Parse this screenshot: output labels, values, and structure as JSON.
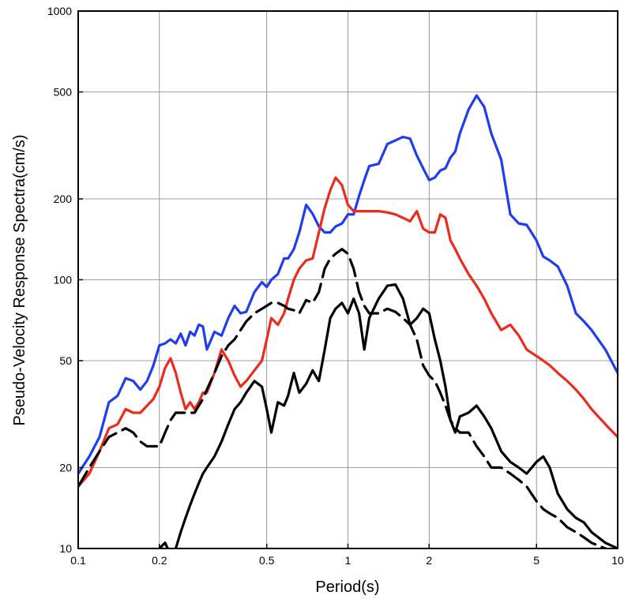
{
  "chart_data": {
    "type": "line",
    "xlabel": "Period(s)",
    "ylabel": "Pseudo-Velocity Response Spectra(cm/s)",
    "xscale": "log",
    "yscale": "log",
    "xlim": [
      0.1,
      10
    ],
    "ylim": [
      10,
      1000
    ],
    "grid": true,
    "x_ticks": [
      0.1,
      0.2,
      0.5,
      1,
      2,
      5,
      10
    ],
    "x_tick_labels": [
      "0.1",
      "0.2",
      "0.5",
      "1",
      "2",
      "5",
      "10"
    ],
    "y_ticks": [
      10,
      20,
      50,
      100,
      200,
      500,
      1000
    ],
    "y_tick_labels": [
      "10",
      "20",
      "50",
      "100",
      "200",
      "500",
      "1000"
    ],
    "series": [
      {
        "color": "#1f3cf0",
        "style": "solid",
        "x": [
          0.1,
          0.11,
          0.12,
          0.13,
          0.14,
          0.15,
          0.16,
          0.17,
          0.18,
          0.19,
          0.2,
          0.21,
          0.22,
          0.23,
          0.24,
          0.25,
          0.26,
          0.27,
          0.28,
          0.29,
          0.3,
          0.32,
          0.34,
          0.36,
          0.38,
          0.4,
          0.42,
          0.45,
          0.48,
          0.5,
          0.52,
          0.55,
          0.58,
          0.6,
          0.63,
          0.66,
          0.7,
          0.74,
          0.78,
          0.82,
          0.86,
          0.9,
          0.95,
          1.0,
          1.05,
          1.1,
          1.15,
          1.2,
          1.3,
          1.4,
          1.5,
          1.6,
          1.7,
          1.8,
          1.9,
          2.0,
          2.1,
          2.2,
          2.3,
          2.4,
          2.5,
          2.6,
          2.8,
          3.0,
          3.2,
          3.4,
          3.7,
          4.0,
          4.3,
          4.6,
          5.0,
          5.3,
          5.6,
          6.0,
          6.5,
          7.0,
          7.5,
          8.0,
          9.0,
          10.0
        ],
        "y": [
          19,
          22,
          26,
          35,
          37,
          43,
          42,
          39,
          42,
          48,
          57,
          58,
          60,
          58,
          63,
          57,
          64,
          62,
          68,
          67,
          55,
          64,
          62,
          72,
          80,
          75,
          76,
          90,
          98,
          94,
          100,
          105,
          120,
          120,
          130,
          150,
          190,
          176,
          158,
          150,
          150,
          158,
          162,
          175,
          175,
          205,
          235,
          265,
          270,
          320,
          330,
          340,
          335,
          290,
          260,
          235,
          240,
          255,
          260,
          285,
          300,
          350,
          430,
          485,
          440,
          350,
          280,
          175,
          162,
          160,
          140,
          122,
          118,
          112,
          95,
          75,
          70,
          65,
          55,
          45
        ]
      },
      {
        "color": "#ee2a1c",
        "style": "solid",
        "x": [
          0.1,
          0.11,
          0.12,
          0.13,
          0.14,
          0.15,
          0.16,
          0.17,
          0.18,
          0.19,
          0.2,
          0.21,
          0.22,
          0.23,
          0.24,
          0.25,
          0.26,
          0.27,
          0.28,
          0.29,
          0.3,
          0.32,
          0.34,
          0.36,
          0.38,
          0.4,
          0.42,
          0.45,
          0.48,
          0.5,
          0.52,
          0.55,
          0.58,
          0.6,
          0.63,
          0.66,
          0.7,
          0.74,
          0.78,
          0.82,
          0.86,
          0.9,
          0.95,
          1.0,
          1.05,
          1.1,
          1.15,
          1.2,
          1.3,
          1.4,
          1.5,
          1.6,
          1.7,
          1.8,
          1.9,
          2.0,
          2.1,
          2.2,
          2.3,
          2.4,
          2.5,
          2.6,
          2.8,
          3.0,
          3.2,
          3.4,
          3.7,
          4.0,
          4.3,
          4.6,
          5.0,
          5.3,
          5.6,
          6.0,
          6.5,
          7.0,
          7.5,
          8.0,
          9.0,
          10.0
        ],
        "y": [
          17,
          19,
          23,
          28,
          29,
          33,
          32,
          32,
          34,
          36,
          40,
          47,
          51,
          45,
          38,
          33,
          35,
          33,
          35,
          38,
          38,
          45,
          55,
          50,
          44,
          40,
          42,
          46,
          50,
          60,
          72,
          68,
          75,
          85,
          100,
          110,
          118,
          120,
          150,
          185,
          215,
          240,
          225,
          190,
          180,
          180,
          180,
          180,
          180,
          178,
          175,
          170,
          165,
          180,
          155,
          150,
          150,
          175,
          170,
          140,
          130,
          120,
          105,
          95,
          85,
          75,
          65,
          68,
          62,
          55,
          52,
          50,
          48,
          45,
          42,
          39,
          36,
          33,
          29,
          26
        ]
      },
      {
        "color": "#000000",
        "style": "dashed",
        "x": [
          0.1,
          0.11,
          0.12,
          0.13,
          0.14,
          0.15,
          0.16,
          0.17,
          0.18,
          0.19,
          0.2,
          0.21,
          0.22,
          0.23,
          0.24,
          0.25,
          0.26,
          0.27,
          0.28,
          0.29,
          0.3,
          0.32,
          0.34,
          0.36,
          0.38,
          0.4,
          0.42,
          0.45,
          0.48,
          0.5,
          0.52,
          0.55,
          0.58,
          0.6,
          0.63,
          0.66,
          0.7,
          0.74,
          0.78,
          0.82,
          0.86,
          0.9,
          0.95,
          1.0,
          1.05,
          1.1,
          1.15,
          1.2,
          1.3,
          1.4,
          1.5,
          1.6,
          1.7,
          1.8,
          1.9,
          2.0,
          2.1,
          2.2,
          2.3,
          2.4,
          2.5,
          2.6,
          2.8,
          3.0,
          3.2,
          3.4,
          3.7,
          4.0,
          4.3,
          4.6,
          5.0,
          5.3,
          5.6,
          6.0,
          6.5,
          7.0,
          7.5,
          8.0,
          9.0,
          10.0
        ],
        "y": [
          17,
          20,
          23,
          26,
          27,
          28,
          27,
          25,
          24,
          24,
          24,
          27,
          30,
          32,
          32,
          32,
          32,
          32,
          34,
          36,
          39,
          45,
          52,
          57,
          60,
          65,
          70,
          75,
          78,
          80,
          82,
          82,
          80,
          78,
          77,
          75,
          84,
          82,
          90,
          110,
          120,
          125,
          130,
          125,
          110,
          90,
          80,
          75,
          75,
          78,
          76,
          72,
          68,
          60,
          48,
          44,
          42,
          38,
          34,
          30,
          28,
          27,
          27,
          24,
          22,
          20,
          20,
          19,
          18,
          17,
          15,
          14,
          13.5,
          13,
          12,
          11.5,
          11,
          10.5,
          10,
          9.5
        ]
      },
      {
        "color": "#000000",
        "style": "solid",
        "x": [
          0.2,
          0.21,
          0.22,
          0.23,
          0.24,
          0.25,
          0.26,
          0.27,
          0.28,
          0.29,
          0.3,
          0.32,
          0.34,
          0.36,
          0.38,
          0.4,
          0.42,
          0.45,
          0.48,
          0.5,
          0.52,
          0.55,
          0.58,
          0.6,
          0.63,
          0.66,
          0.7,
          0.74,
          0.78,
          0.82,
          0.86,
          0.9,
          0.95,
          1.0,
          1.05,
          1.1,
          1.15,
          1.2,
          1.3,
          1.4,
          1.5,
          1.6,
          1.7,
          1.8,
          1.9,
          2.0,
          2.1,
          2.2,
          2.3,
          2.4,
          2.5,
          2.6,
          2.8,
          3.0,
          3.2,
          3.4,
          3.7,
          4.0,
          4.3,
          4.6,
          5.0,
          5.3,
          5.6,
          6.0,
          6.5,
          7.0,
          7.5,
          8.0,
          9.0,
          10.0
        ],
        "y": [
          10,
          10.5,
          9.5,
          10,
          11.5,
          13,
          14.5,
          16,
          17.5,
          19,
          20,
          22,
          25,
          29,
          33,
          35,
          38,
          42,
          40,
          33,
          27,
          35,
          34,
          37,
          45,
          38,
          41,
          46,
          42,
          55,
          72,
          78,
          82,
          75,
          85,
          75,
          55,
          72,
          85,
          95,
          96,
          85,
          68,
          72,
          78,
          75,
          60,
          50,
          40,
          30,
          27,
          31,
          32,
          34,
          31,
          28,
          23,
          21,
          20,
          19,
          21,
          22,
          20,
          16,
          14,
          13,
          12.5,
          11.5,
          10.5,
          10
        ]
      }
    ]
  }
}
